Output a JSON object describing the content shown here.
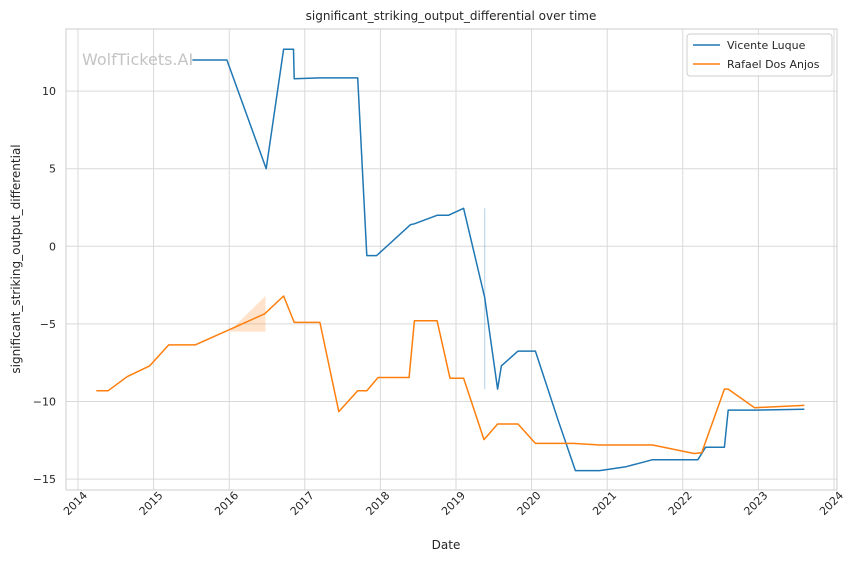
{
  "chart_data": {
    "type": "line",
    "title": "significant_striking_output_differential over time",
    "xlabel": "Date",
    "ylabel": "significant_striking_output_differential",
    "watermark": "WolfTickets.AI",
    "xlim": [
      2014.0,
      2024.0
    ],
    "ylim": [
      -15.7,
      14.0
    ],
    "grid": true,
    "legend_position": "top-right",
    "x_ticks": [
      "2014",
      "2015",
      "2016",
      "2017",
      "2018",
      "2019",
      "2020",
      "2021",
      "2022",
      "2023",
      "2024"
    ],
    "y_ticks": [
      {
        "value": 10,
        "label": "10"
      },
      {
        "value": 5,
        "label": "5"
      },
      {
        "value": 0,
        "label": "0"
      },
      {
        "value": -5,
        "label": "−5"
      },
      {
        "value": -10,
        "label": "−10"
      },
      {
        "value": -15,
        "label": "−15"
      }
    ],
    "series": [
      {
        "name": "Vicente Luque",
        "color": "#1f77b4",
        "points": [
          [
            2015.52,
            12.0
          ],
          [
            2015.97,
            12.0
          ],
          [
            2016.49,
            5.0
          ],
          [
            2016.72,
            12.7
          ],
          [
            2016.85,
            12.7
          ],
          [
            2016.86,
            10.8
          ],
          [
            2017.2,
            10.85
          ],
          [
            2017.7,
            10.85
          ],
          [
            2017.82,
            -0.6
          ],
          [
            2017.95,
            -0.6
          ],
          [
            2018.4,
            1.4
          ],
          [
            2018.45,
            1.45
          ],
          [
            2018.75,
            2.0
          ],
          [
            2018.9,
            2.0
          ],
          [
            2019.1,
            2.45
          ],
          [
            2019.38,
            -3.3
          ],
          [
            2019.55,
            -9.2
          ],
          [
            2019.6,
            -7.7
          ],
          [
            2019.82,
            -6.75
          ],
          [
            2020.05,
            -6.75
          ],
          [
            2020.35,
            -11.2
          ],
          [
            2020.58,
            -14.45
          ],
          [
            2020.9,
            -14.45
          ],
          [
            2021.25,
            -14.2
          ],
          [
            2021.6,
            -13.75
          ],
          [
            2022.2,
            -13.75
          ],
          [
            2022.3,
            -12.95
          ],
          [
            2022.55,
            -12.95
          ],
          [
            2022.6,
            -10.55
          ],
          [
            2022.95,
            -10.55
          ],
          [
            2023.6,
            -10.5
          ]
        ]
      },
      {
        "name": "Rafael Dos Anjos",
        "color": "#ff7f0e",
        "points": [
          [
            2014.25,
            -9.3
          ],
          [
            2014.4,
            -9.3
          ],
          [
            2014.65,
            -8.4
          ],
          [
            2014.95,
            -7.7
          ],
          [
            2015.2,
            -6.35
          ],
          [
            2015.55,
            -6.35
          ],
          [
            2016.47,
            -4.35
          ],
          [
            2016.72,
            -3.2
          ],
          [
            2016.86,
            -4.9
          ],
          [
            2017.2,
            -4.9
          ],
          [
            2017.45,
            -10.65
          ],
          [
            2017.7,
            -9.3
          ],
          [
            2017.82,
            -9.3
          ],
          [
            2017.97,
            -8.45
          ],
          [
            2018.38,
            -8.45
          ],
          [
            2018.45,
            -4.8
          ],
          [
            2018.75,
            -4.8
          ],
          [
            2018.92,
            -8.5
          ],
          [
            2019.1,
            -8.5
          ],
          [
            2019.37,
            -12.45
          ],
          [
            2019.55,
            -11.45
          ],
          [
            2019.82,
            -11.45
          ],
          [
            2020.05,
            -12.7
          ],
          [
            2020.55,
            -12.7
          ],
          [
            2020.9,
            -12.8
          ],
          [
            2021.6,
            -12.8
          ],
          [
            2022.15,
            -13.35
          ],
          [
            2022.25,
            -13.3
          ],
          [
            2022.55,
            -9.2
          ],
          [
            2022.6,
            -9.2
          ],
          [
            2022.95,
            -10.4
          ],
          [
            2023.6,
            -10.25
          ]
        ],
        "band": [
          [
            2016.0,
            -5.5,
            -5.5
          ],
          [
            2016.48,
            -5.5,
            -3.2
          ]
        ]
      }
    ],
    "annotations": [
      {
        "type": "vline",
        "x": 2019.38,
        "y_range": [
          -9.2,
          2.45
        ],
        "color": "#1f77b4"
      }
    ]
  }
}
